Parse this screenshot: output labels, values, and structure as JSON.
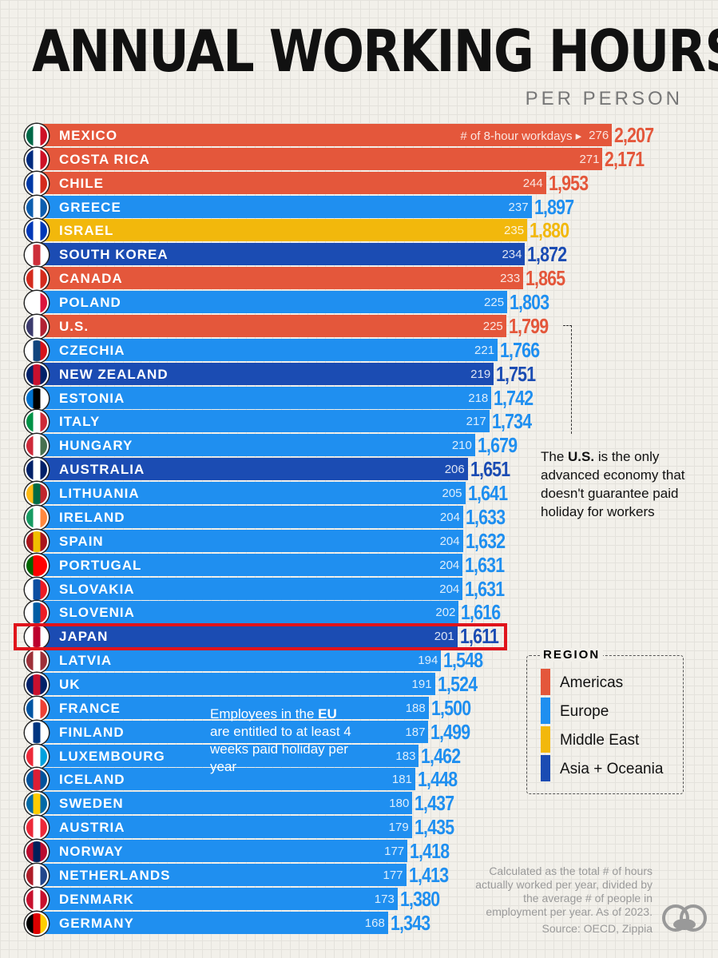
{
  "title": "ANNUAL WORKING HOURS",
  "subtitle": "PER PERSON",
  "colors": {
    "Americas": "#e4573b",
    "Europe": "#1f8ff0",
    "Middle East": "#f2b80c",
    "Asia + Oceania": "#1b4cb3",
    "highlight": "#e0141b"
  },
  "chart_data": {
    "type": "bar",
    "orientation": "horizontal",
    "title": "ANNUAL WORKING HOURS",
    "subtitle": "PER PERSON",
    "days_label": "# of 8-hour workdays",
    "highlighted": "JAPAN",
    "rows": [
      {
        "country": "MEXICO",
        "region": "Americas",
        "days": 276,
        "hours": "2,207",
        "value": 2207,
        "flag": [
          "#006847",
          "#ffffff",
          "#ce1126"
        ]
      },
      {
        "country": "COSTA RICA",
        "region": "Americas",
        "days": 271,
        "hours": "2,171",
        "value": 2171,
        "flag": [
          "#002b7f",
          "#ffffff",
          "#ce1126"
        ]
      },
      {
        "country": "CHILE",
        "region": "Americas",
        "days": 244,
        "hours": "1,953",
        "value": 1953,
        "flag": [
          "#0039a6",
          "#ffffff",
          "#d52b1e"
        ]
      },
      {
        "country": "GREECE",
        "region": "Europe",
        "days": 237,
        "hours": "1,897",
        "value": 1897,
        "flag": [
          "#0d5eaf",
          "#ffffff",
          "#0d5eaf"
        ]
      },
      {
        "country": "ISRAEL",
        "region": "Middle East",
        "days": 235,
        "hours": "1,880",
        "value": 1880,
        "flag": [
          "#0038b8",
          "#ffffff",
          "#0038b8"
        ]
      },
      {
        "country": "SOUTH KOREA",
        "region": "Asia + Oceania",
        "days": 234,
        "hours": "1,872",
        "value": 1872,
        "flag": [
          "#ffffff",
          "#cd2e3a",
          "#ffffff"
        ]
      },
      {
        "country": "CANADA",
        "region": "Americas",
        "days": 233,
        "hours": "1,865",
        "value": 1865,
        "flag": [
          "#d52b1e",
          "#ffffff",
          "#d52b1e"
        ]
      },
      {
        "country": "POLAND",
        "region": "Europe",
        "days": 225,
        "hours": "1,803",
        "value": 1803,
        "flag": [
          "#ffffff",
          "#ffffff",
          "#dc143c"
        ]
      },
      {
        "country": "U.S.",
        "region": "Americas",
        "days": 225,
        "hours": "1,799",
        "value": 1799,
        "flag": [
          "#3c3b6e",
          "#ffffff",
          "#b22234"
        ]
      },
      {
        "country": "CZECHIA",
        "region": "Europe",
        "days": 221,
        "hours": "1,766",
        "value": 1766,
        "flag": [
          "#ffffff",
          "#11457e",
          "#d7141a"
        ]
      },
      {
        "country": "NEW ZEALAND",
        "region": "Asia + Oceania",
        "days": 219,
        "hours": "1,751",
        "value": 1751,
        "flag": [
          "#012169",
          "#c8102e",
          "#012169"
        ]
      },
      {
        "country": "ESTONIA",
        "region": "Europe",
        "days": 218,
        "hours": "1,742",
        "value": 1742,
        "flag": [
          "#0072ce",
          "#000000",
          "#ffffff"
        ]
      },
      {
        "country": "ITALY",
        "region": "Europe",
        "days": 217,
        "hours": "1,734",
        "value": 1734,
        "flag": [
          "#009246",
          "#ffffff",
          "#ce2b37"
        ]
      },
      {
        "country": "HUNGARY",
        "region": "Europe",
        "days": 210,
        "hours": "1,679",
        "value": 1679,
        "flag": [
          "#ce2939",
          "#ffffff",
          "#477050"
        ]
      },
      {
        "country": "AUSTRALIA",
        "region": "Asia + Oceania",
        "days": 206,
        "hours": "1,651",
        "value": 1651,
        "flag": [
          "#012169",
          "#ffffff",
          "#012169"
        ]
      },
      {
        "country": "LITHUANIA",
        "region": "Europe",
        "days": 205,
        "hours": "1,641",
        "value": 1641,
        "flag": [
          "#fdb913",
          "#006a44",
          "#c1272d"
        ]
      },
      {
        "country": "IRELAND",
        "region": "Europe",
        "days": 204,
        "hours": "1,633",
        "value": 1633,
        "flag": [
          "#169b62",
          "#ffffff",
          "#ff883e"
        ]
      },
      {
        "country": "SPAIN",
        "region": "Europe",
        "days": 204,
        "hours": "1,632",
        "value": 1632,
        "flag": [
          "#aa151b",
          "#f1bf00",
          "#aa151b"
        ]
      },
      {
        "country": "PORTUGAL",
        "region": "Europe",
        "days": 204,
        "hours": "1,631",
        "value": 1631,
        "flag": [
          "#006600",
          "#ff0000",
          "#ff0000"
        ]
      },
      {
        "country": "SLOVAKIA",
        "region": "Europe",
        "days": 204,
        "hours": "1,631",
        "value": 1631,
        "flag": [
          "#ffffff",
          "#0b4ea2",
          "#ee1c25"
        ]
      },
      {
        "country": "SLOVENIA",
        "region": "Europe",
        "days": 202,
        "hours": "1,616",
        "value": 1616,
        "flag": [
          "#ffffff",
          "#005da4",
          "#ed1c24"
        ]
      },
      {
        "country": "JAPAN",
        "region": "Asia + Oceania",
        "days": 201,
        "hours": "1,611",
        "value": 1611,
        "flag": [
          "#ffffff",
          "#bc002d",
          "#ffffff"
        ]
      },
      {
        "country": "LATVIA",
        "region": "Europe",
        "days": 194,
        "hours": "1,548",
        "value": 1548,
        "flag": [
          "#9e3039",
          "#ffffff",
          "#9e3039"
        ]
      },
      {
        "country": "UK",
        "region": "Europe",
        "days": 191,
        "hours": "1,524",
        "value": 1524,
        "flag": [
          "#012169",
          "#c8102e",
          "#012169"
        ]
      },
      {
        "country": "FRANCE",
        "region": "Europe",
        "days": 188,
        "hours": "1,500",
        "value": 1500,
        "flag": [
          "#0055a4",
          "#ffffff",
          "#ef4135"
        ]
      },
      {
        "country": "FINLAND",
        "region": "Europe",
        "days": 187,
        "hours": "1,499",
        "value": 1499,
        "flag": [
          "#ffffff",
          "#003580",
          "#ffffff"
        ]
      },
      {
        "country": "LUXEMBOURG",
        "region": "Europe",
        "days": 183,
        "hours": "1,462",
        "value": 1462,
        "flag": [
          "#ed2939",
          "#ffffff",
          "#00a1de"
        ]
      },
      {
        "country": "ICELAND",
        "region": "Europe",
        "days": 181,
        "hours": "1,448",
        "value": 1448,
        "flag": [
          "#02529c",
          "#dc1e35",
          "#02529c"
        ]
      },
      {
        "country": "SWEDEN",
        "region": "Europe",
        "days": 180,
        "hours": "1,437",
        "value": 1437,
        "flag": [
          "#006aa7",
          "#fecc00",
          "#006aa7"
        ]
      },
      {
        "country": "AUSTRIA",
        "region": "Europe",
        "days": 179,
        "hours": "1,435",
        "value": 1435,
        "flag": [
          "#ed2939",
          "#ffffff",
          "#ed2939"
        ]
      },
      {
        "country": "NORWAY",
        "region": "Europe",
        "days": 177,
        "hours": "1,418",
        "value": 1418,
        "flag": [
          "#ba0c2f",
          "#00205b",
          "#ba0c2f"
        ]
      },
      {
        "country": "NETHERLANDS",
        "region": "Europe",
        "days": 177,
        "hours": "1,413",
        "value": 1413,
        "flag": [
          "#ae1c28",
          "#ffffff",
          "#21468b"
        ]
      },
      {
        "country": "DENMARK",
        "region": "Europe",
        "days": 173,
        "hours": "1,380",
        "value": 1380,
        "flag": [
          "#c8102e",
          "#ffffff",
          "#c8102e"
        ]
      },
      {
        "country": "GERMANY",
        "region": "Europe",
        "days": 168,
        "hours": "1,343",
        "value": 1343,
        "flag": [
          "#000000",
          "#dd0000",
          "#ffce00"
        ]
      }
    ],
    "legend": {
      "title": "REGION",
      "placement": "right",
      "items": [
        "Americas",
        "Europe",
        "Middle East",
        "Asia + Oceania"
      ]
    }
  },
  "annotations": {
    "us_note": {
      "pre": "The ",
      "bold": "U.S.",
      "post": " is the only advanced economy that doesn't guarantee paid holiday for workers"
    },
    "eu_note": {
      "pre": "Employees in the ",
      "bold": "EU",
      "post": " are entitled to at least 4 weeks paid holiday per year"
    }
  },
  "footnote": "Calculated as the total # of hours actually worked per year, divided by the average # of people in employment per year. As of 2023.",
  "source": "Source: OECD, Zippia",
  "logo": "visual-capitalist-logo"
}
